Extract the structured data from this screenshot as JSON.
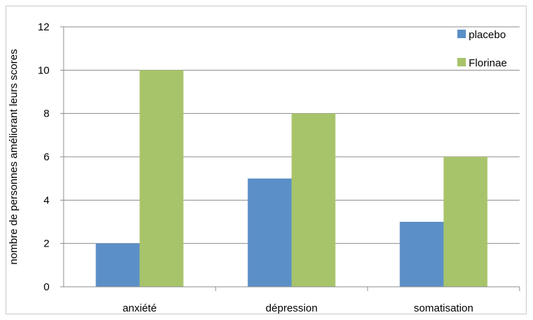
{
  "chart_data": {
    "type": "bar",
    "title": "",
    "xlabel": "",
    "ylabel": "nombre de personnes améliorant leurs scores",
    "categories": [
      "anxiété",
      "dépression",
      "somatisation"
    ],
    "series": [
      {
        "name": "placebo",
        "values": [
          2,
          5,
          3
        ],
        "color": "#5b8fc7"
      },
      {
        "name": "Florinae",
        "values": [
          10,
          8,
          6
        ],
        "color": "#a8c46a"
      }
    ],
    "ylim": [
      0,
      12
    ],
    "yticks": [
      0,
      2,
      4,
      6,
      8,
      10,
      12
    ],
    "grid": true,
    "legend_position": "top-right"
  }
}
